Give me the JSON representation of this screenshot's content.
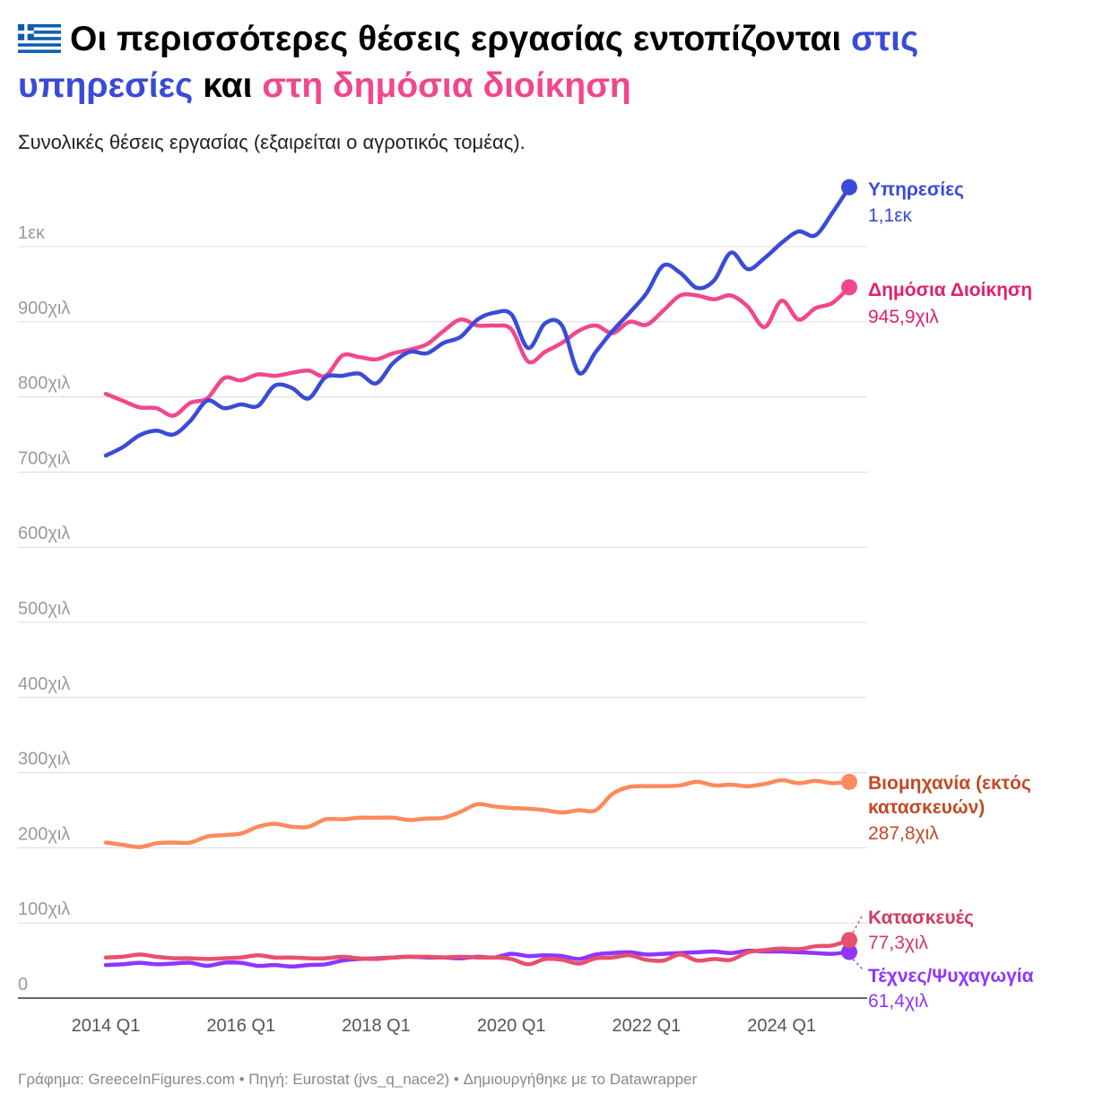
{
  "header": {
    "title_part1": "Οι περισσότερες θέσεις εργασίας εντοπίζονται",
    "title_part2": "στις υπηρεσίες",
    "title_part3": "και",
    "title_part4": "στη δημόσια διοίκηση",
    "subtitle": "Συνολικές θέσεις εργασίας (εξαιρείται ο αγροτικός τομέας).",
    "flag_icon": "greece-flag-icon"
  },
  "colors": {
    "services": "#3a4bd8",
    "public_admin": "#f2478c",
    "industry": "#ff8a5c",
    "construction": "#e8506b",
    "arts": "#8f35ff",
    "industry_text": "#c24a26",
    "construction_text": "#d23a5c",
    "grid": "#dcdcdc"
  },
  "footer": {
    "text": "Γράφημα: GreeceInFigures.com • Πηγή: Eurostat (jvs_q_nace2) • Δημιουργήθηκε με το Datawrapper"
  },
  "chart_data": {
    "type": "line",
    "title": "Οι περισσότερες θέσεις εργασίας εντοπίζονται στις υπηρεσίες και στη δημόσια διοίκηση",
    "subtitle": "Συνολικές θέσεις εργασίας (εξαιρείται ο αγροτικός τομέας).",
    "ylim": [
      0,
      1100000
    ],
    "y_ticks": [
      {
        "value": 0,
        "label": "0"
      },
      {
        "value": 100000,
        "label": "100χιλ"
      },
      {
        "value": 200000,
        "label": "200χιλ"
      },
      {
        "value": 300000,
        "label": "300χιλ"
      },
      {
        "value": 400000,
        "label": "400χιλ"
      },
      {
        "value": 500000,
        "label": "500χιλ"
      },
      {
        "value": 600000,
        "label": "600χιλ"
      },
      {
        "value": 700000,
        "label": "700χιλ"
      },
      {
        "value": 800000,
        "label": "800χιλ"
      },
      {
        "value": 900000,
        "label": "900χιλ"
      },
      {
        "value": 1000000,
        "label": "1εκ"
      }
    ],
    "x_ticks": [
      {
        "index": 0,
        "label": "2014 Q1"
      },
      {
        "index": 8,
        "label": "2016 Q1"
      },
      {
        "index": 16,
        "label": "2018 Q1"
      },
      {
        "index": 24,
        "label": "2020 Q1"
      },
      {
        "index": 32,
        "label": "2022 Q1"
      },
      {
        "index": 40,
        "label": "2024 Q1"
      }
    ],
    "x_count": 45,
    "grid": true,
    "series": [
      {
        "name": "Υπηρεσίες",
        "end_label": "1,1εκ",
        "color_key": "services",
        "values": [
          722000,
          733000,
          749000,
          755000,
          750000,
          768000,
          795000,
          785000,
          790000,
          788000,
          815000,
          812000,
          798000,
          826000,
          828000,
          831000,
          818000,
          845000,
          860000,
          858000,
          872000,
          880000,
          903000,
          912000,
          910000,
          865000,
          898000,
          895000,
          832000,
          860000,
          888000,
          912000,
          938000,
          975000,
          965000,
          945000,
          955000,
          992000,
          970000,
          985000,
          1005000,
          1020000,
          1015000,
          1045000,
          1079000
        ]
      },
      {
        "name": "Δημόσια Διοίκηση",
        "end_label": "945,9χιλ",
        "color_key": "public_admin",
        "values": [
          804000,
          795000,
          786000,
          785000,
          775000,
          792000,
          798000,
          825000,
          822000,
          830000,
          828000,
          832000,
          835000,
          828000,
          855000,
          853000,
          850000,
          858000,
          863000,
          870000,
          888000,
          903000,
          895000,
          895000,
          890000,
          847000,
          860000,
          872000,
          888000,
          895000,
          885000,
          900000,
          896000,
          915000,
          935000,
          935000,
          930000,
          935000,
          920000,
          893000,
          928000,
          903000,
          918000,
          925000,
          945900
        ]
      },
      {
        "name": "Βιομηχανία (εκτός κατασκευών)",
        "name_lines": [
          "Βιομηχανία (εκτός",
          "κατασκευών)"
        ],
        "end_label": "287,8χιλ",
        "color_key": "industry",
        "values": [
          207000,
          204000,
          201000,
          206000,
          207000,
          207000,
          215000,
          217000,
          219000,
          228000,
          232000,
          228000,
          228000,
          238000,
          238000,
          240000,
          240000,
          240000,
          237000,
          239000,
          240000,
          248000,
          258000,
          255000,
          253000,
          252000,
          250000,
          247000,
          250000,
          250000,
          272000,
          281000,
          282000,
          282000,
          283000,
          288000,
          283000,
          284000,
          282000,
          285000,
          290000,
          286000,
          289000,
          286000,
          287800
        ]
      },
      {
        "name": "Κατασκευές",
        "end_label": "77,3χιλ",
        "color_key": "construction",
        "values": [
          54000,
          55000,
          58000,
          55000,
          53000,
          53000,
          52000,
          53000,
          54000,
          57000,
          54000,
          54000,
          53000,
          53000,
          55000,
          53000,
          52000,
          54000,
          55000,
          55000,
          54000,
          55000,
          54000,
          54000,
          52000,
          45000,
          52000,
          51000,
          46000,
          53000,
          54000,
          57000,
          51000,
          50000,
          58000,
          50000,
          52000,
          51000,
          61000,
          64000,
          66000,
          65000,
          69000,
          70000,
          77300
        ]
      },
      {
        "name": "Τέχνες/Ψυχαγωγία",
        "end_label": "61,4χιλ",
        "color_key": "arts",
        "values": [
          44000,
          45000,
          47000,
          45000,
          46000,
          47000,
          43000,
          47000,
          47000,
          43000,
          44000,
          42000,
          44000,
          45000,
          50000,
          52000,
          53000,
          54000,
          55000,
          54000,
          54000,
          53000,
          55000,
          54000,
          59000,
          56000,
          57000,
          56000,
          52000,
          58000,
          60000,
          61000,
          58000,
          59000,
          60000,
          61000,
          62000,
          60000,
          63000,
          62000,
          62000,
          61000,
          60000,
          59000,
          61400
        ]
      }
    ]
  }
}
